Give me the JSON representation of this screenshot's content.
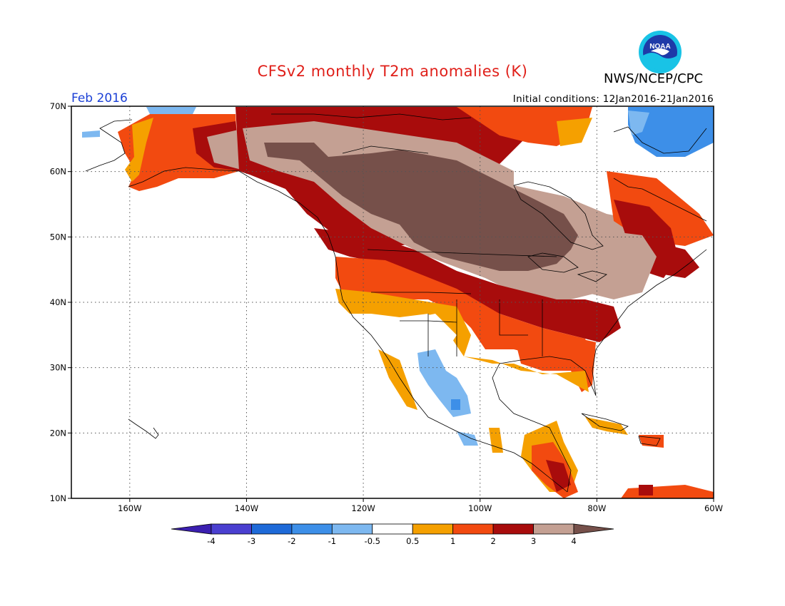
{
  "header": {
    "title": "CFSv2 monthly T2m anomalies (K)",
    "agency": "NWS/NCEP/CPC",
    "logo_text": "NOAA",
    "month": "Feb 2016",
    "initial_conditions": "Initial conditions: 12Jan2016-21Jan2016"
  },
  "map": {
    "lon_range": [
      -170,
      -60
    ],
    "lat_range": [
      10,
      70
    ],
    "lon_ticks": [
      {
        "value": -160,
        "label": "160W"
      },
      {
        "value": -140,
        "label": "140W"
      },
      {
        "value": -120,
        "label": "120W"
      },
      {
        "value": -100,
        "label": "100W"
      },
      {
        "value": -80,
        "label": "80W"
      },
      {
        "value": -60,
        "label": "60W"
      }
    ],
    "lat_ticks": [
      {
        "value": 10,
        "label": "10N"
      },
      {
        "value": 20,
        "label": "20N"
      },
      {
        "value": 30,
        "label": "30N"
      },
      {
        "value": 40,
        "label": "40N"
      },
      {
        "value": 50,
        "label": "50N"
      },
      {
        "value": 60,
        "label": "60N"
      },
      {
        "value": 70,
        "label": "70N"
      }
    ],
    "gridlines": true
  },
  "colorbar": {
    "labels": [
      "-4",
      "-3",
      "-2",
      "-1",
      "-0.5",
      "0.5",
      "1",
      "2",
      "3",
      "4"
    ],
    "colors": [
      "#3b1fb0",
      "#4a3fd0",
      "#1e6ad8",
      "#3d8fe8",
      "#7db8f0",
      "#ffffff",
      "#f5a000",
      "#f24a10",
      "#a80c0c",
      "#c4a093",
      "#76504a"
    ]
  },
  "palette": {
    "brown": "#76504a",
    "tan": "#c4a093",
    "darkred": "#a80c0c",
    "red": "#f24a10",
    "orange": "#f5a000",
    "lightblue": "#7db8f0",
    "blue": "#3d8fe8",
    "title_red": "#e0201a",
    "month_blue": "#1a3fd6"
  }
}
